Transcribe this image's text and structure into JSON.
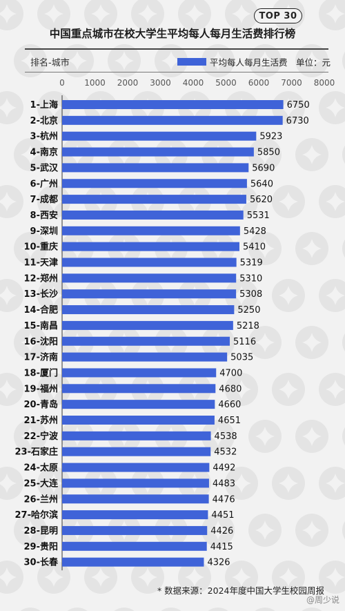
{
  "header": {
    "badge": "TOP 30",
    "title": "中国重点城市在校大学生平均每人每月生活费排行榜",
    "column_label": "排名-城市",
    "unit": "单位：元"
  },
  "chart_data": {
    "type": "bar",
    "orientation": "horizontal",
    "title": "中国重点城市在校大学生平均每人每月生活费排行榜",
    "categories": [
      "1-上海",
      "2-北京",
      "3-杭州",
      "4-南京",
      "5-武汉",
      "6-广州",
      "7-成都",
      "8-西安",
      "9-深圳",
      "10-重庆",
      "11-天津",
      "12-郑州",
      "13-长沙",
      "14-合肥",
      "15-南昌",
      "16-沈阳",
      "17-济南",
      "18-厦门",
      "19-福州",
      "20-青岛",
      "21-苏州",
      "22-宁波",
      "23-石家庄",
      "24-太原",
      "25-大连",
      "26-兰州",
      "27-哈尔滨",
      "28-昆明",
      "29-贵阳",
      "30-长春"
    ],
    "series": [
      {
        "name": "平均每人每月生活费",
        "color": "#3f63d8",
        "values": [
          6750,
          6730,
          5923,
          5850,
          5690,
          5640,
          5620,
          5531,
          5428,
          5410,
          5319,
          5310,
          5308,
          5250,
          5218,
          5116,
          5035,
          4700,
          4680,
          4660,
          4651,
          4538,
          4532,
          4492,
          4483,
          4476,
          4451,
          4426,
          4415,
          4326
        ]
      }
    ],
    "xlim": [
      0,
      8000
    ],
    "ticks": [
      0,
      1000,
      2000,
      3000,
      4000,
      5000,
      6000,
      7000,
      8000
    ],
    "grid": false,
    "legend": "top-right"
  },
  "footer": {
    "source": "* 数据来源：2024年度中国大学生校园周报",
    "watermark": "@周少说"
  }
}
